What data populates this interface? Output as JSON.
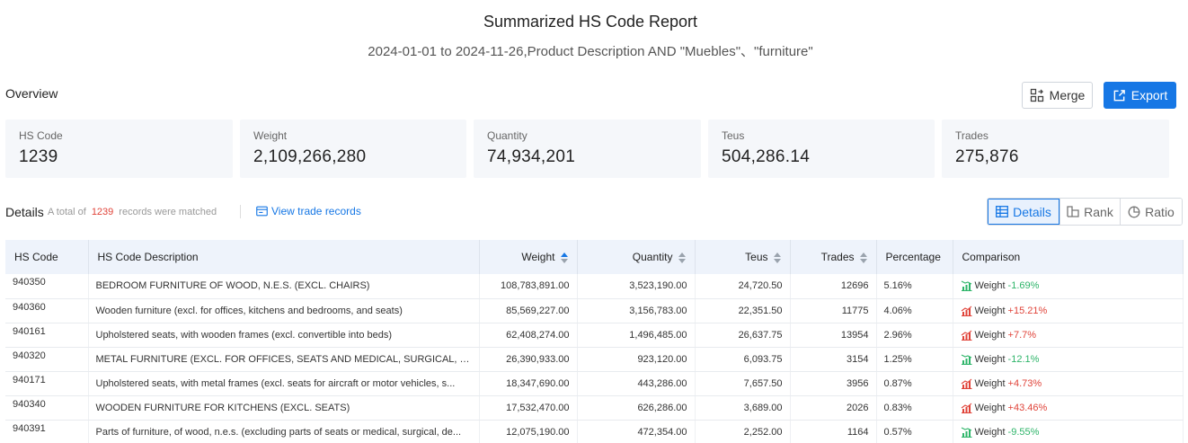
{
  "header": {
    "title": "Summarized HS Code Report",
    "subtitle": "2024-01-01 to 2024-11-26,Product Description AND \"Muebles\"、\"furniture\""
  },
  "overview": {
    "label": "Overview",
    "merge_label": "Merge",
    "export_label": "Export",
    "stats": [
      {
        "label": "HS Code",
        "value": "1239"
      },
      {
        "label": "Weight",
        "value": "2,109,266,280"
      },
      {
        "label": "Quantity",
        "value": "74,934,201"
      },
      {
        "label": "Teus",
        "value": "504,286.14"
      },
      {
        "label": "Trades",
        "value": "275,876"
      }
    ]
  },
  "details": {
    "label": "Details",
    "meta_prefix": "A total of",
    "count": "1239",
    "meta_suffix": "records were matched",
    "view_records": "View trade records",
    "views": [
      "Details",
      "Rank",
      "Ratio"
    ],
    "active_view": "Details"
  },
  "table": {
    "columns": [
      "HS Code",
      "HS Code Description",
      "Weight",
      "Quantity",
      "Teus",
      "Trades",
      "Percentage",
      "Comparison"
    ],
    "rows": [
      {
        "code": "940350",
        "desc": "BEDROOM FURNITURE OF WOOD, N.E.S. (EXCL. CHAIRS)",
        "weight": "108,783,891.00",
        "quantity": "3,523,190.00",
        "teus": "24,720.50",
        "trades": "12696",
        "pct": "5.16%",
        "cmp_label": "Weight",
        "cmp_value": "-1.69%",
        "trend": "down"
      },
      {
        "code": "940360",
        "desc": "Wooden furniture (excl. for offices, kitchens and bedrooms, and seats)",
        "weight": "85,569,227.00",
        "quantity": "3,156,783.00",
        "teus": "22,351.50",
        "trades": "11775",
        "pct": "4.06%",
        "cmp_label": "Weight",
        "cmp_value": "+15.21%",
        "trend": "up"
      },
      {
        "code": "940161",
        "desc": "Upholstered seats, with wooden frames (excl. convertible into beds)",
        "weight": "62,408,274.00",
        "quantity": "1,496,485.00",
        "teus": "26,637.75",
        "trades": "13954",
        "pct": "2.96%",
        "cmp_label": "Weight",
        "cmp_value": "+7.7%",
        "trend": "up"
      },
      {
        "code": "940320",
        "desc": "METAL FURNITURE (EXCL. FOR OFFICES, SEATS AND MEDICAL, SURGICAL, DENT...",
        "weight": "26,390,933.00",
        "quantity": "923,120.00",
        "teus": "6,093.75",
        "trades": "3154",
        "pct": "1.25%",
        "cmp_label": "Weight",
        "cmp_value": "-12.1%",
        "trend": "down"
      },
      {
        "code": "940171",
        "desc": "Upholstered seats, with metal frames (excl. seats for aircraft or motor vehicles, s...",
        "weight": "18,347,690.00",
        "quantity": "443,286.00",
        "teus": "7,657.50",
        "trades": "3956",
        "pct": "0.87%",
        "cmp_label": "Weight",
        "cmp_value": "+4.73%",
        "trend": "up"
      },
      {
        "code": "940340",
        "desc": "WOODEN FURNITURE FOR KITCHENS (EXCL. SEATS)",
        "weight": "17,532,470.00",
        "quantity": "626,286.00",
        "teus": "3,689.00",
        "trades": "2026",
        "pct": "0.83%",
        "cmp_label": "Weight",
        "cmp_value": "+43.46%",
        "trend": "up"
      },
      {
        "code": "940391",
        "desc": "Parts of furniture, of wood, n.e.s. (excluding parts of seats or medical, surgical, de...",
        "weight": "12,075,190.00",
        "quantity": "472,354.00",
        "teus": "2,252.00",
        "trades": "1164",
        "pct": "0.57%",
        "cmp_label": "Weight",
        "cmp_value": "-9.55%",
        "trend": "down"
      }
    ]
  },
  "colors": {
    "accent": "#1677e5",
    "up": "#e0443a",
    "down": "#2fb56a"
  }
}
